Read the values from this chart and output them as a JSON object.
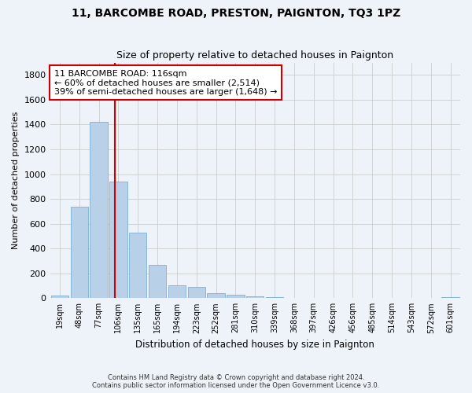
{
  "title": "11, BARCOMBE ROAD, PRESTON, PAIGNTON, TQ3 1PZ",
  "subtitle": "Size of property relative to detached houses in Paignton",
  "xlabel": "Distribution of detached houses by size in Paignton",
  "ylabel": "Number of detached properties",
  "footer_line1": "Contains HM Land Registry data © Crown copyright and database right 2024.",
  "footer_line2": "Contains public sector information licensed under the Open Government Licence v3.0.",
  "bar_labels": [
    "19sqm",
    "48sqm",
    "77sqm",
    "106sqm",
    "135sqm",
    "165sqm",
    "194sqm",
    "223sqm",
    "252sqm",
    "281sqm",
    "310sqm",
    "339sqm",
    "368sqm",
    "397sqm",
    "426sqm",
    "456sqm",
    "485sqm",
    "514sqm",
    "543sqm",
    "572sqm",
    "601sqm"
  ],
  "bar_values": [
    22,
    740,
    1420,
    940,
    530,
    265,
    105,
    93,
    38,
    28,
    15,
    8,
    3,
    2,
    1,
    1,
    0,
    0,
    0,
    0,
    10
  ],
  "bar_color": "#b8d0e8",
  "bar_edge_color": "#7aafd4",
  "grid_color": "#cccccc",
  "background_color": "#eef2f9",
  "vline_color": "#cc0000",
  "vline_x": 2.84,
  "annotation_text": "11 BARCOMBE ROAD: 116sqm\n← 60% of detached houses are smaller (2,514)\n39% of semi-detached houses are larger (1,648) →",
  "annotation_box_color": "#ffffff",
  "annotation_box_edge": "#cc0000",
  "ylim": [
    0,
    1900
  ],
  "yticks": [
    0,
    200,
    400,
    600,
    800,
    1000,
    1200,
    1400,
    1600,
    1800
  ],
  "title_fontsize": 10,
  "subtitle_fontsize": 9,
  "ylabel_fontsize": 8,
  "xlabel_fontsize": 8.5,
  "tick_fontsize": 7,
  "annotation_fontsize": 8,
  "footer_fontsize": 6
}
